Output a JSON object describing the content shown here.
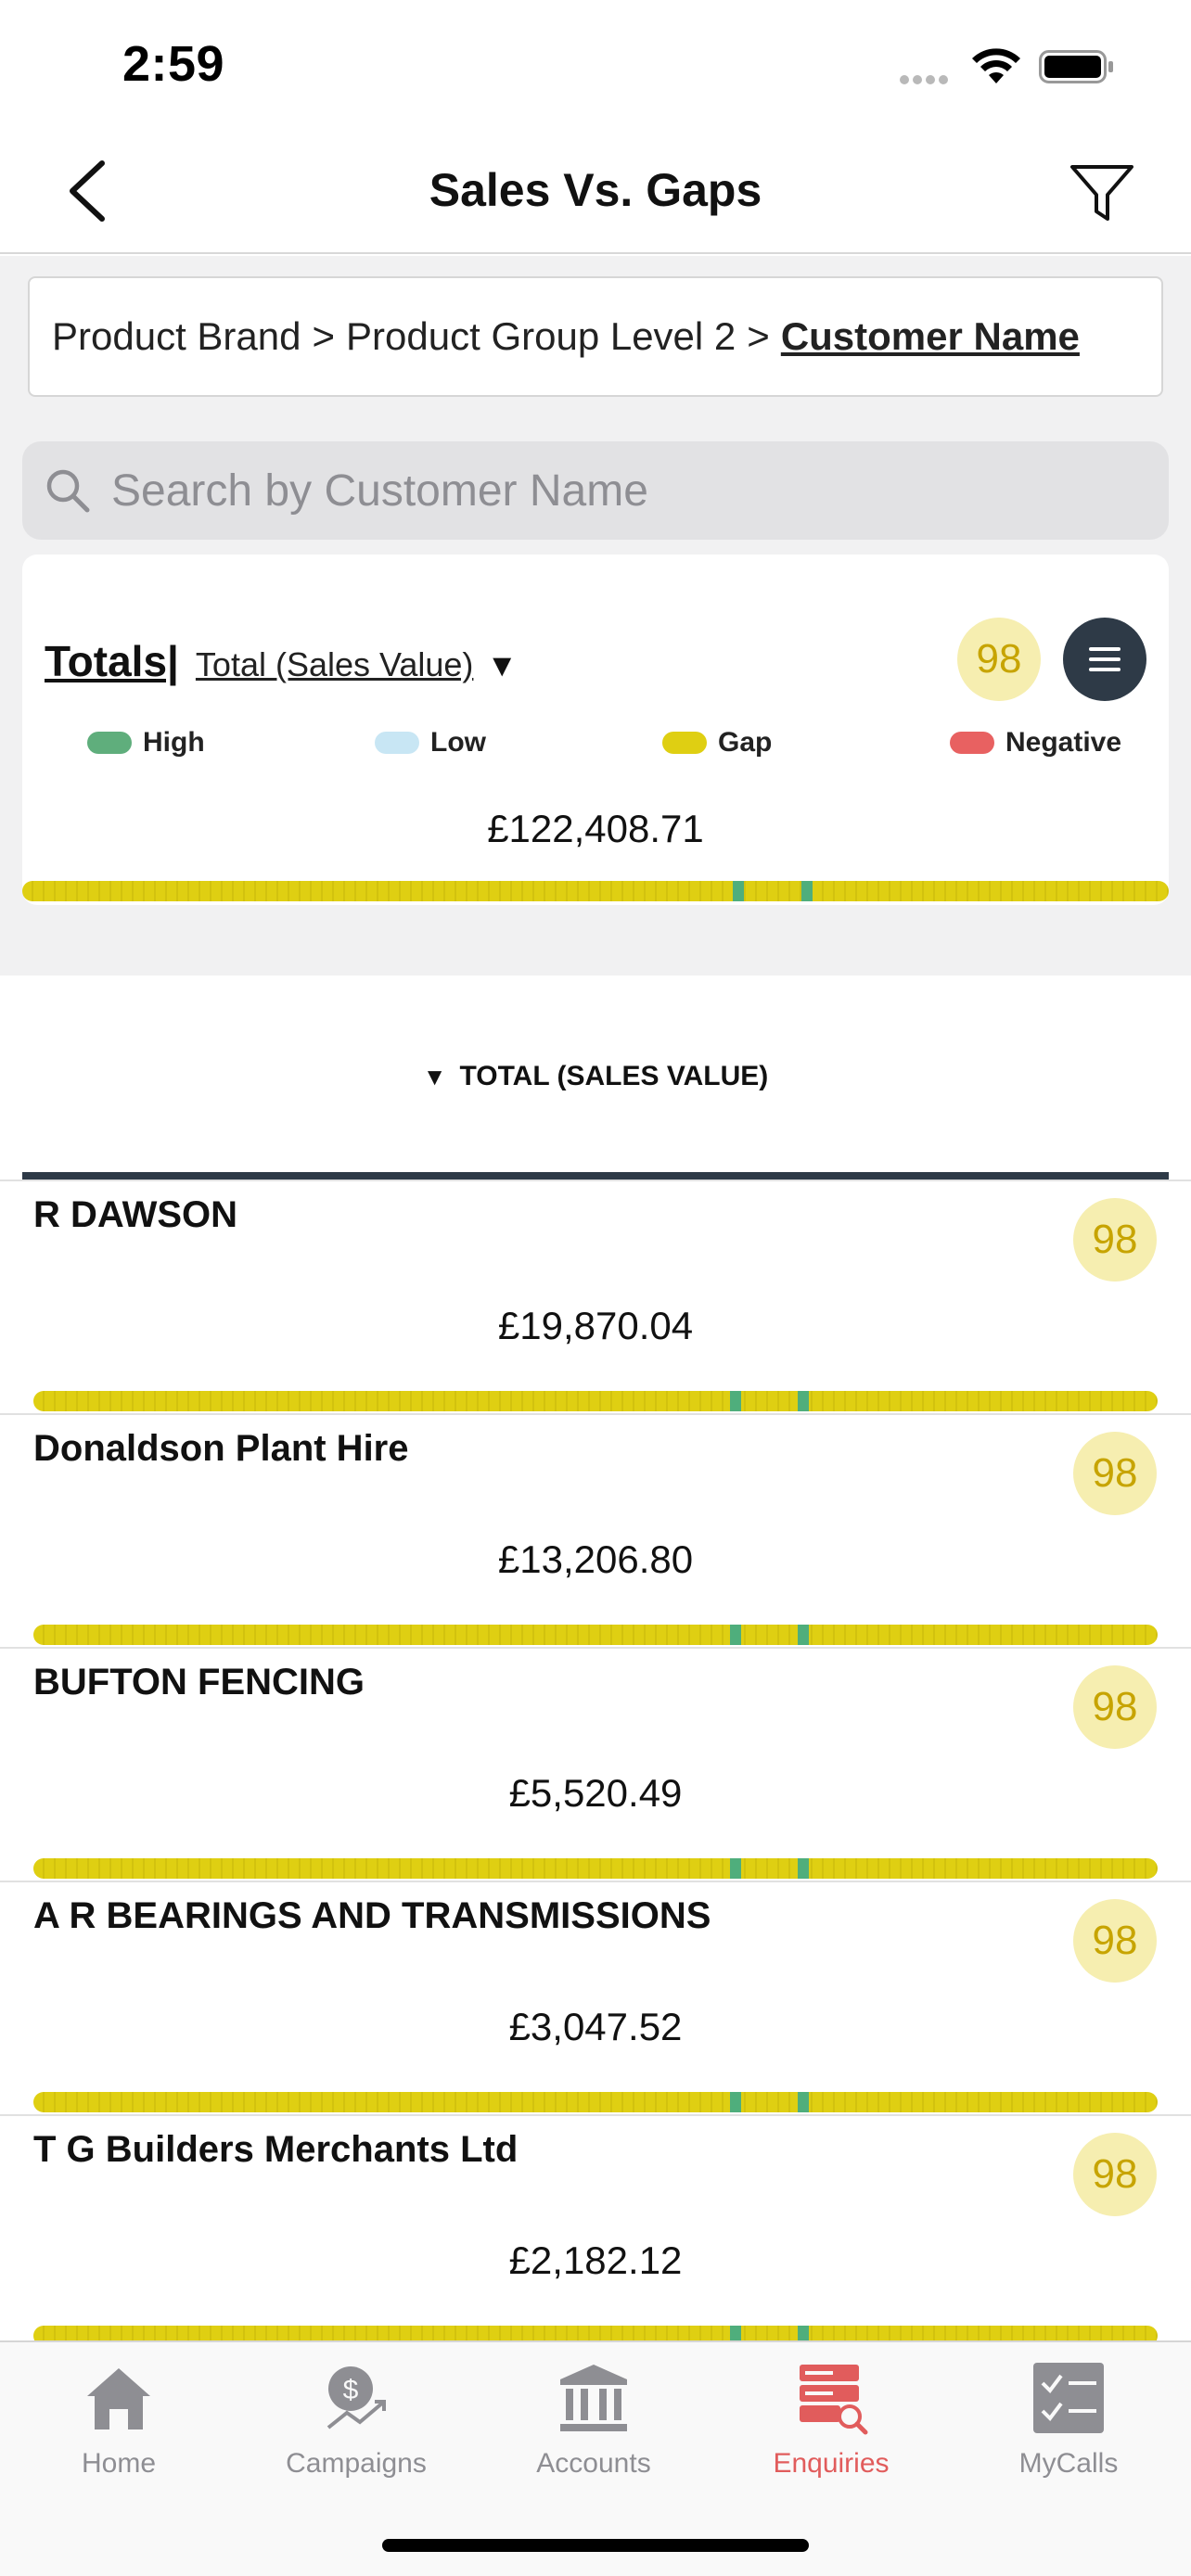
{
  "status_bar": {
    "time": "2:59"
  },
  "header": {
    "title": "Sales Vs. Gaps",
    "back_icon": "chevron-left-icon",
    "filter_icon": "filter-icon"
  },
  "breadcrumb": {
    "items": [
      "Product Brand",
      "Product Group Level 2",
      "Customer Name"
    ],
    "separator": ">"
  },
  "search": {
    "placeholder": "Search by Customer Name",
    "value": ""
  },
  "totals": {
    "label": "Totals|",
    "metric": "Total (Sales Value)",
    "score": "98",
    "value": "£122,408.71",
    "bar_markers": [
      0.62,
      0.68
    ]
  },
  "legend": [
    {
      "label": "High",
      "color": "#5fae7c"
    },
    {
      "label": "Low",
      "color": "#c8e6f4"
    },
    {
      "label": "Gap",
      "color": "#dfcf12"
    },
    {
      "label": "Negative",
      "color": "#e86161"
    }
  ],
  "list": {
    "sort_label": "TOTAL (SALES VALUE)",
    "rows": [
      {
        "name": "R DAWSON",
        "score": "98",
        "value": "£19,870.04"
      },
      {
        "name": "Donaldson Plant Hire",
        "score": "98",
        "value": "£13,206.80"
      },
      {
        "name": "BUFTON FENCING",
        "score": "98",
        "value": "£5,520.49"
      },
      {
        "name": "A R BEARINGS AND TRANSMISSIONS",
        "score": "98",
        "value": "£3,047.52"
      },
      {
        "name": "T G Builders Merchants Ltd",
        "score": "98",
        "value": "£2,182.12"
      }
    ]
  },
  "tabs": [
    {
      "label": "Home",
      "icon": "home-icon"
    },
    {
      "label": "Campaigns",
      "icon": "campaigns-icon"
    },
    {
      "label": "Accounts",
      "icon": "bank-icon"
    },
    {
      "label": "Enquiries",
      "icon": "enquiries-icon",
      "active": true
    },
    {
      "label": "MyCalls",
      "icon": "checklist-icon"
    }
  ],
  "colors": {
    "gap": "#dfcf12",
    "high": "#4fae7c",
    "active_tab": "#e15c5c",
    "score_bg": "#f6eeb0",
    "score_text": "#c7a400",
    "dark": "#2e3a47"
  }
}
